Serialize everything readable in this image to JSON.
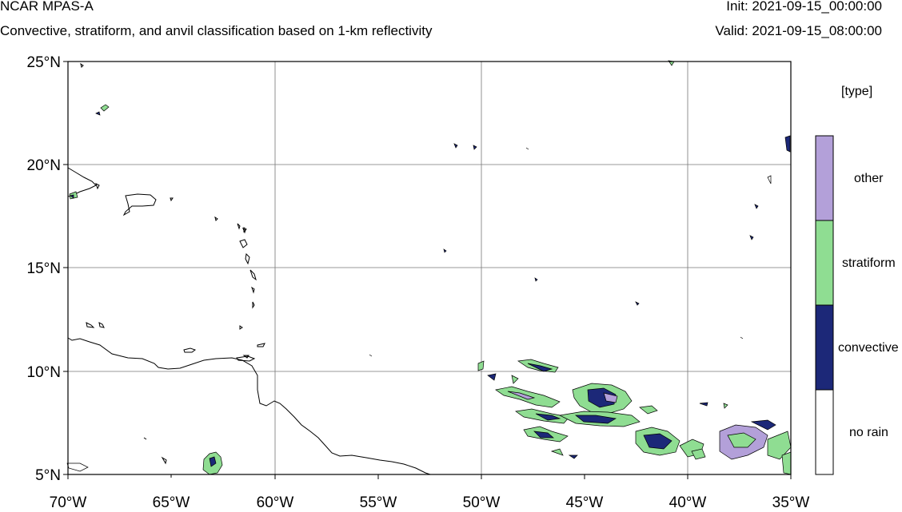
{
  "header": {
    "title": "NCAR MPAS-A",
    "subtitle": "Convective, stratiform, and anvil classification based on 1-km reflectivity",
    "init": "Init: 2021-09-15_00:00:00",
    "valid": "Valid: 2021-09-15_08:00:00"
  },
  "map": {
    "lon_range": [
      -70,
      -35
    ],
    "lat_range": [
      5,
      25
    ],
    "lon_ticks": [
      "70°W",
      "65°W",
      "60°W",
      "55°W",
      "50°W",
      "45°W",
      "40°W",
      "35°W"
    ],
    "lat_ticks": [
      "25°N",
      "20°N",
      "15°N",
      "10°N",
      "5°N"
    ],
    "grid": true
  },
  "legend": {
    "title": "[type]",
    "items": [
      {
        "label": "other",
        "color": "#b3a0d9"
      },
      {
        "label": "stratiform",
        "color": "#8fdd92"
      },
      {
        "label": "convective",
        "color": "#1c2878"
      },
      {
        "label": "no rain",
        "color": "#ffffff"
      }
    ]
  }
}
